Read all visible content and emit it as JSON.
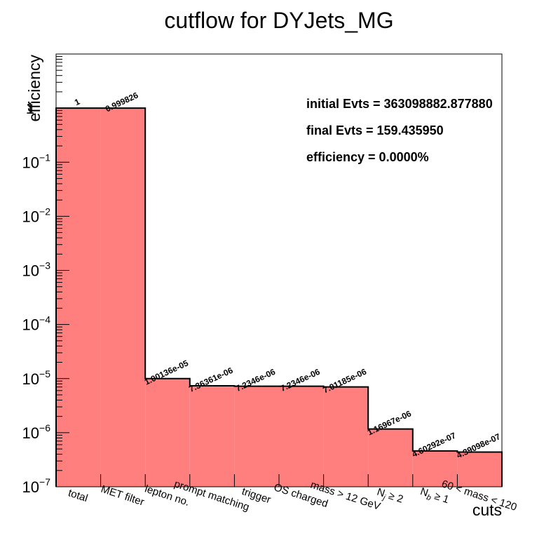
{
  "chart_data": {
    "type": "bar",
    "title": "cutflow for DYJets_MG",
    "xlabel": "cuts",
    "ylabel": "efficiency",
    "yscale": "log",
    "ylim": [
      1e-07,
      10
    ],
    "grid": false,
    "bar_color": "#ff7f7f",
    "categories": [
      {
        "main": "total"
      },
      {
        "main": "MET filter"
      },
      {
        "main": "lepton no."
      },
      {
        "main": "prompt matching"
      },
      {
        "main": "trigger"
      },
      {
        "main": "OS charged"
      },
      {
        "main": "mass > 12 GeV"
      },
      {
        "main": "N",
        "sub": "j",
        "rest": " ≥ 2"
      },
      {
        "main": "N",
        "sub": "b",
        "rest": " ≥ 1"
      },
      {
        "main": "60 < mass < 120"
      }
    ],
    "values": [
      1,
      0.999826,
      1.00136e-05,
      7.36361e-06,
      7.2346e-06,
      7.2346e-06,
      7.01185e-06,
      1.16967e-06,
      4.60292e-07,
      4.39098e-07
    ],
    "value_labels": [
      "1",
      "0.999826",
      "1.00136e-05",
      "7.36361e-06",
      "7.2346e-06",
      "7.2346e-06",
      "7.01185e-06",
      "1.16967e-06",
      "4.60292e-07",
      "4.39098e-07"
    ],
    "y_ticks": [
      {
        "value": 1e-07,
        "base": "10",
        "exp": "−7"
      },
      {
        "value": 1e-06,
        "base": "10",
        "exp": "−6"
      },
      {
        "value": 1e-05,
        "base": "10",
        "exp": "−5"
      },
      {
        "value": 0.0001,
        "base": "10",
        "exp": "−4"
      },
      {
        "value": 0.001,
        "base": "10",
        "exp": "−3"
      },
      {
        "value": 0.01,
        "base": "10",
        "exp": "−2"
      },
      {
        "value": 0.1,
        "base": "10",
        "exp": "−1"
      },
      {
        "value": 1,
        "base": "1",
        "exp": ""
      }
    ],
    "annotations": [
      "initial Evts = 363098882.877880",
      "final Evts = 159.435950",
      "efficiency = 0.0000%"
    ]
  }
}
